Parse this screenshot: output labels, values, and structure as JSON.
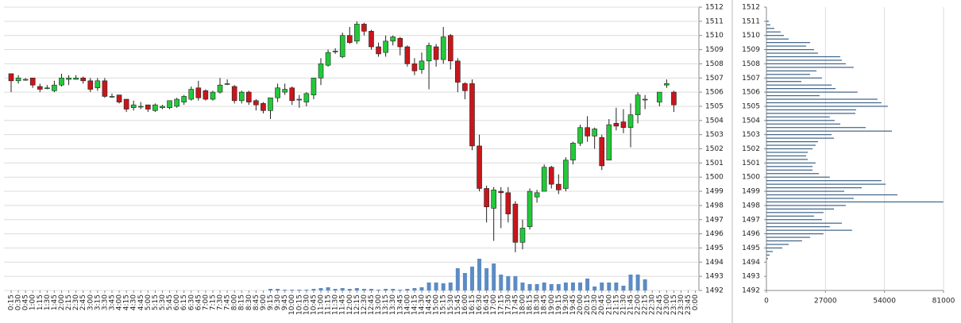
{
  "chart_data": [
    {
      "type": "candlestick",
      "categories": [
        "0:15",
        "0:30",
        "0:45",
        "1:00",
        "1:15",
        "1:30",
        "1:45",
        "2:00",
        "2:15",
        "2:30",
        "2:45",
        "3:00",
        "3:15",
        "3:30",
        "3:45",
        "4:00",
        "4:15",
        "4:30",
        "4:45",
        "5:00",
        "5:15",
        "5:30",
        "5:45",
        "6:00",
        "6:15",
        "6:30",
        "6:45",
        "7:00",
        "7:15",
        "7:30",
        "7:45",
        "8:00",
        "8:15",
        "8:30",
        "8:45",
        "9:00",
        "9:15",
        "9:30",
        "9:45",
        "10:00",
        "10:15",
        "10:30",
        "10:45",
        "11:00",
        "11:15",
        "11:30",
        "11:45",
        "12:00",
        "12:15",
        "12:30",
        "12:45",
        "13:00",
        "13:15",
        "13:30",
        "13:45",
        "14:00",
        "14:15",
        "14:30",
        "14:45",
        "15:00",
        "15:15",
        "15:30",
        "15:45",
        "16:00",
        "16:15",
        "16:30",
        "16:45",
        "17:00",
        "17:15",
        "17:30",
        "17:45",
        "18:00",
        "18:15",
        "18:30",
        "18:45",
        "19:00",
        "19:15",
        "19:30",
        "19:45",
        "20:00",
        "20:15",
        "20:30",
        "20:45",
        "21:00",
        "21:15",
        "21:30",
        "21:45",
        "22:00",
        "22:15",
        "22:30",
        "22:45",
        "23:00",
        "23:15",
        "23:30",
        "23:45",
        "0:00"
      ],
      "open": [
        1507.3,
        1506.8,
        1506.9,
        1507,
        1506.4,
        1506.3,
        1506.1,
        1506.5,
        1506.9,
        1506.9,
        1507,
        1506.8,
        1506.3,
        1506.8,
        1505.7,
        1505.8,
        1505.5,
        1504.9,
        1505,
        1505.1,
        1504.7,
        1504.9,
        1504.9,
        1505,
        1505.3,
        1505.5,
        1506.3,
        1506.1,
        1505.5,
        1506,
        1506.6,
        1506.4,
        1505.4,
        1506,
        1505.4,
        1505.2,
        1504.7,
        1505.6,
        1506,
        1506.3,
        1505.5,
        1505.3,
        1505.8,
        1507,
        1507.9,
        1508.9,
        1508.5,
        1510,
        1509.6,
        1510.8,
        1510.3,
        1509.2,
        1508.8,
        1509.6,
        1509.8,
        1509.2,
        1508,
        1507.6,
        1508.2,
        1509.2,
        1508.3,
        1510,
        1508.2,
        1506.6,
        1506.6,
        1502.2,
        1499.2,
        1497.8,
        1499,
        1498.9,
        1498.1,
        1495.4,
        1496.5,
        1498.6,
        1499,
        1500.7,
        1499.5,
        1499.2,
        1501.2,
        1502.4,
        1503.5,
        1502.9,
        1502.8,
        1501.2,
        1503.8,
        1503.9,
        1503.5,
        1504.4,
        1505.5,
        null,
        1505.3,
        1506.5,
        1506,
        null,
        null,
        null
      ],
      "high": [
        1507.3,
        1507.2,
        1507,
        1507,
        1506.6,
        1506.5,
        1506.8,
        1507.3,
        1507.2,
        1507.2,
        1507.1,
        1507,
        1507,
        1507,
        1505.9,
        1505.8,
        1505.5,
        1505.4,
        1505.3,
        1505.1,
        1505.2,
        1505.1,
        1505.4,
        1505.6,
        1505.8,
        1506.4,
        1506.8,
        1506.2,
        1506.1,
        1507,
        1506.9,
        1506.5,
        1506.1,
        1506.1,
        1505.5,
        1505.3,
        1505.6,
        1506.6,
        1506.6,
        1506.4,
        1505.8,
        1506,
        1507,
        1508.4,
        1509,
        1509.1,
        1510.2,
        1510.6,
        1511,
        1510.9,
        1510.4,
        1509.5,
        1510,
        1510,
        1509.9,
        1509.3,
        1508.4,
        1508.8,
        1509.5,
        1509.4,
        1510.6,
        1510.1,
        1508.4,
        1506.7,
        1506.9,
        1503,
        1499.4,
        1499.3,
        1499.3,
        1499.3,
        1498.3,
        1497,
        1499.2,
        1499.1,
        1500.9,
        1500.8,
        1500.2,
        1501.4,
        1502.5,
        1503.7,
        1504.3,
        1503.5,
        1503,
        1504.1,
        1504.9,
        1504.8,
        1505.2,
        1506,
        1505.8,
        null,
        1506,
        1506.9,
        1506.1,
        null,
        null,
        null
      ],
      "low": [
        1506,
        1506.6,
        1506.8,
        1506.3,
        1506,
        1506.2,
        1506,
        1506.4,
        1506.5,
        1506.9,
        1506.6,
        1506,
        1506.1,
        1505.6,
        1505.6,
        1505.2,
        1504.6,
        1504.7,
        1504.8,
        1504.6,
        1504.6,
        1504.8,
        1504.8,
        1504.9,
        1505.1,
        1505.4,
        1505.4,
        1505.4,
        1505.4,
        1505.9,
        1506.5,
        1505.2,
        1505.2,
        1505.1,
        1504.7,
        1504.5,
        1504.1,
        1505.3,
        1505.8,
        1505.1,
        1504.9,
        1505,
        1505.5,
        1506.5,
        1507.8,
        1508.7,
        1508.4,
        1509.4,
        1509.4,
        1510,
        1509,
        1508.5,
        1508.5,
        1509.3,
        1508.6,
        1507.8,
        1507.2,
        1507.3,
        1506.2,
        1507.8,
        1508,
        1507.6,
        1506,
        1505.5,
        1501.9,
        1499,
        1496.8,
        1495.5,
        1496.4,
        1496.8,
        1494.7,
        1494.9,
        1496.3,
        1498.2,
        1499,
        1499.2,
        1498.8,
        1499,
        1500.9,
        1502.2,
        1502.5,
        1502,
        1500.5,
        1501.2,
        1503.3,
        1503.1,
        1502.1,
        1503.8,
        1504.8,
        null,
        1505,
        1506.3,
        1504.6,
        null,
        null,
        null
      ],
      "close": [
        1506.8,
        1507,
        1506.9,
        1506.5,
        1506.2,
        1506.3,
        1506.5,
        1507,
        1507,
        1507,
        1506.8,
        1506.2,
        1506.8,
        1505.7,
        1505.7,
        1505.3,
        1504.8,
        1505.1,
        1505,
        1504.8,
        1505.1,
        1505,
        1505.4,
        1505.5,
        1505.7,
        1506.2,
        1505.6,
        1505.5,
        1506,
        1506.5,
        1506.6,
        1505.4,
        1506,
        1505.3,
        1505.1,
        1504.7,
        1505.6,
        1506.3,
        1506.2,
        1505.4,
        1505.5,
        1505.9,
        1507,
        1508,
        1508.8,
        1508.9,
        1510,
        1509.5,
        1510.8,
        1510.3,
        1509.2,
        1508.7,
        1509.6,
        1509.9,
        1509.2,
        1508,
        1507.5,
        1508.2,
        1509.3,
        1508.3,
        1509.9,
        1508.2,
        1506.7,
        1506.1,
        1502.2,
        1499.2,
        1497.9,
        1499.1,
        1498.9,
        1497.4,
        1495.4,
        1496.4,
        1499,
        1498.9,
        1500.7,
        1499.5,
        1499.1,
        1501.2,
        1502.4,
        1503.5,
        1502.9,
        1503.4,
        1500.8,
        1503.7,
        1503.6,
        1503.5,
        1504.4,
        1505.8,
        1505.5,
        null,
        1506,
        1506.6,
        1505.1,
        null,
        null,
        null
      ],
      "volume": [
        null,
        null,
        null,
        null,
        null,
        null,
        null,
        null,
        null,
        null,
        null,
        null,
        null,
        null,
        null,
        null,
        null,
        null,
        null,
        null,
        null,
        null,
        null,
        null,
        null,
        null,
        null,
        null,
        null,
        null,
        null,
        null,
        null,
        null,
        null,
        null,
        2,
        2,
        1,
        1,
        1,
        1,
        2,
        3,
        4,
        2,
        3,
        2,
        3,
        2,
        2,
        1,
        2,
        2,
        1,
        2,
        3,
        4,
        10,
        10,
        9,
        10,
        28,
        22,
        30,
        40,
        28,
        34,
        20,
        18,
        18,
        10,
        8,
        8,
        10,
        8,
        8,
        10,
        10,
        10,
        15,
        5,
        10,
        10,
        10,
        6,
        20,
        20,
        14,
        null,
        null,
        null,
        null,
        null,
        null,
        null
      ],
      "up_color": "#22c93a",
      "down_color": "#c8161b",
      "volume_color": "#5b8cc4",
      "ylim": [
        1492,
        1512
      ],
      "yticks": [
        1492,
        1493,
        1494,
        1495,
        1496,
        1497,
        1498,
        1499,
        1500,
        1501,
        1502,
        1503,
        1504,
        1505,
        1506,
        1507,
        1508,
        1509,
        1510,
        1511,
        1512
      ],
      "grid": true
    },
    {
      "type": "bar",
      "orientation": "horizontal",
      "y": [
        1511,
        1510.75,
        1510.5,
        1510.25,
        1510,
        1509.75,
        1509.5,
        1509.25,
        1509,
        1508.75,
        1508.5,
        1508.25,
        1508,
        1507.75,
        1507.5,
        1507.25,
        1507,
        1506.75,
        1506.5,
        1506.25,
        1506,
        1505.75,
        1505.5,
        1505.25,
        1505,
        1504.75,
        1504.5,
        1504.25,
        1504,
        1503.75,
        1503.5,
        1503.25,
        1503,
        1502.75,
        1502.5,
        1502.25,
        1502,
        1501.75,
        1501.5,
        1501.25,
        1501,
        1500.75,
        1500.5,
        1500.25,
        1500,
        1499.75,
        1499.5,
        1499.25,
        1499,
        1498.75,
        1498.5,
        1498.25,
        1498,
        1497.75,
        1497.5,
        1497.25,
        1497,
        1496.75,
        1496.5,
        1496.25,
        1496,
        1495.75,
        1495.5,
        1495.25,
        1495,
        1494.75,
        1494.5,
        1494.25
      ],
      "values": [
        1100,
        1800,
        3600,
        6500,
        8000,
        10200,
        20000,
        18200,
        21800,
        23600,
        33800,
        34500,
        36300,
        39900,
        22900,
        20000,
        25400,
        16000,
        29800,
        31600,
        41700,
        24300,
        50800,
        52600,
        55500,
        41000,
        40700,
        29000,
        31200,
        33800,
        45400,
        57400,
        29800,
        30900,
        23600,
        22500,
        21100,
        18900,
        18200,
        18900,
        22500,
        21100,
        21100,
        24000,
        29000,
        52600,
        54500,
        43600,
        35600,
        59900,
        39900,
        80900,
        36300,
        30900,
        26100,
        21800,
        25400,
        34500,
        29000,
        39200,
        26100,
        20000,
        16300,
        10200,
        7300,
        2900,
        1500,
        700
      ],
      "color": "#3d6387",
      "xlim": [
        0,
        81000
      ],
      "xticks": [
        0,
        27000,
        54000,
        81000
      ],
      "ylim": [
        1492,
        1512
      ],
      "yticks": [
        1492,
        1493,
        1494,
        1495,
        1496,
        1497,
        1498,
        1499,
        1500,
        1501,
        1502,
        1503,
        1504,
        1505,
        1506,
        1507,
        1508,
        1509,
        1510,
        1511,
        1512
      ],
      "grid": true
    }
  ]
}
